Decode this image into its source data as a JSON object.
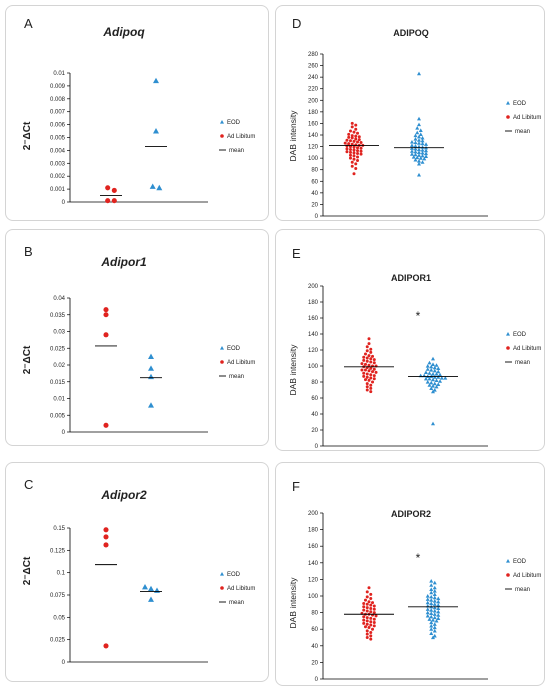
{
  "colors": {
    "eod": "#2f8fd0",
    "ad_libitum": "#e0231f",
    "mean": "#000000",
    "axis": "#000000"
  },
  "chart_data": [
    {
      "panel": "A",
      "type": "scatter",
      "title": "Adipoq",
      "ylabel": "2⁻ΔCt",
      "xlabel": "",
      "ylim": [
        0,
        0.01
      ],
      "ticks": [
        "0",
        "0.001",
        "0.002",
        "0.003",
        "0.004",
        "0.005",
        "0.006",
        "0.007",
        "0.008",
        "0.009",
        "0.01"
      ],
      "legend": [
        "EOD",
        "Ad Libitum",
        "mean"
      ],
      "series": [
        {
          "name": "Ad Libitum",
          "x": 1,
          "values": [
            0.0011,
            0.0009,
            0.0001,
            0.0001
          ],
          "mean": 0.0005
        },
        {
          "name": "EOD",
          "x": 2,
          "values": [
            0.0094,
            0.0055,
            0.0012,
            0.0011
          ],
          "mean": 0.0043
        }
      ]
    },
    {
      "panel": "B",
      "type": "scatter",
      "title": "Adipor1",
      "ylabel": "2⁻ΔCt",
      "xlabel": "",
      "ylim": [
        0,
        0.04
      ],
      "ticks": [
        "0",
        "0.005",
        "0.01",
        "0.015",
        "0.02",
        "0.025",
        "0.03",
        "0.035",
        "0.04"
      ],
      "legend": [
        "EOD",
        "Ad Libitum",
        "mean"
      ],
      "series": [
        {
          "name": "Ad Libitum",
          "x": 1,
          "values": [
            0.0365,
            0.035,
            0.029,
            0.002
          ],
          "mean": 0.0257
        },
        {
          "name": "EOD",
          "x": 2,
          "values": [
            0.0225,
            0.019,
            0.0165,
            0.008
          ],
          "mean": 0.0162
        }
      ]
    },
    {
      "panel": "C",
      "type": "scatter",
      "title": "Adipor2",
      "ylabel": "2⁻ΔCt",
      "xlabel": "",
      "ylim": [
        0,
        0.15
      ],
      "ticks": [
        "0",
        "0.025",
        "0.05",
        "0.075",
        "0.1",
        "0.125",
        "0.15"
      ],
      "legend": [
        "EOD",
        "Ad Libitum",
        "mean"
      ],
      "series": [
        {
          "name": "Ad Libitum",
          "x": 1,
          "values": [
            0.148,
            0.14,
            0.131,
            0.018
          ],
          "mean": 0.109
        },
        {
          "name": "EOD",
          "x": 2,
          "values": [
            0.084,
            0.082,
            0.08,
            0.07
          ],
          "mean": 0.079
        }
      ]
    },
    {
      "panel": "D",
      "type": "scatter",
      "title": "ADIPOQ",
      "ylabel": "DAB intensity",
      "xlabel": "",
      "ylim": [
        0,
        280
      ],
      "ticks": [
        "0",
        "20",
        "40",
        "60",
        "80",
        "100",
        "120",
        "140",
        "160",
        "180",
        "200",
        "220",
        "240",
        "260",
        "280"
      ],
      "legend": [
        "EOD",
        "Ad Libitum",
        "mean"
      ],
      "series": [
        {
          "name": "Ad Libitum",
          "x": 1,
          "mean": 122,
          "values": [
            160,
            157,
            154,
            150,
            147,
            145,
            143,
            141,
            139,
            138,
            137,
            136,
            135,
            133,
            132,
            131,
            130,
            129,
            128,
            127,
            126,
            125,
            124,
            123,
            122,
            122,
            121,
            120,
            119,
            118,
            117,
            116,
            115,
            114,
            113,
            112,
            111,
            110,
            109,
            108,
            107,
            105,
            104,
            102,
            100,
            98,
            96,
            93,
            90,
            86,
            82,
            73
          ]
        },
        {
          "name": "EOD",
          "x": 2,
          "mean": 118,
          "values": [
            246,
            168,
            158,
            152,
            148,
            144,
            141,
            139,
            137,
            135,
            133,
            131,
            130,
            128,
            127,
            126,
            125,
            124,
            122,
            121,
            120,
            119,
            118,
            117,
            116,
            115,
            114,
            113,
            112,
            111,
            110,
            109,
            108,
            107,
            106,
            105,
            104,
            103,
            102,
            101,
            100,
            99,
            97,
            95,
            93,
            90,
            71
          ]
        }
      ]
    },
    {
      "panel": "E",
      "type": "scatter",
      "title": "ADIPOR1",
      "ylabel": "DAB intensity",
      "xlabel": "",
      "ylim": [
        0,
        200
      ],
      "ticks": [
        "0",
        "20",
        "40",
        "60",
        "80",
        "100",
        "120",
        "140",
        "160",
        "180",
        "200"
      ],
      "legend": [
        "EOD",
        "Ad Libitum",
        "mean"
      ],
      "annotation": "*",
      "series": [
        {
          "name": "Ad Libitum",
          "x": 1,
          "mean": 99,
          "values": [
            134,
            128,
            124,
            121,
            119,
            117,
            115,
            113,
            112,
            111,
            110,
            109,
            108,
            107,
            106,
            105,
            104,
            103,
            102,
            101,
            100,
            100,
            99,
            98,
            97,
            96,
            95,
            95,
            94,
            93,
            92,
            91,
            90,
            89,
            88,
            87,
            86,
            85,
            84,
            83,
            82,
            80,
            78,
            76,
            74,
            72,
            70,
            68
          ]
        },
        {
          "name": "EOD",
          "x": 2,
          "mean": 87,
          "values": [
            109,
            104,
            102,
            101,
            100,
            99,
            98,
            97,
            96,
            95,
            94,
            93,
            92,
            91,
            90,
            90,
            89,
            88,
            88,
            87,
            87,
            86,
            86,
            85,
            85,
            84,
            84,
            83,
            82,
            81,
            80,
            79,
            78,
            77,
            76,
            75,
            74,
            72,
            70,
            68,
            28
          ]
        }
      ]
    },
    {
      "panel": "F",
      "type": "scatter",
      "title": "ADIPOR2",
      "ylabel": "DAB intensity",
      "xlabel": "",
      "ylim": [
        0,
        200
      ],
      "ticks": [
        "0",
        "20",
        "40",
        "60",
        "80",
        "100",
        "120",
        "140",
        "160",
        "180",
        "200"
      ],
      "legend": [
        "EOD",
        "Ad Libitum",
        "mean"
      ],
      "annotation": "*",
      "series": [
        {
          "name": "Ad Libitum",
          "x": 1,
          "mean": 78,
          "values": [
            110,
            105,
            102,
            99,
            97,
            95,
            93,
            92,
            91,
            90,
            89,
            88,
            87,
            86,
            85,
            84,
            83,
            82,
            81,
            80,
            79,
            78,
            78,
            77,
            76,
            75,
            74,
            73,
            72,
            71,
            70,
            69,
            68,
            67,
            66,
            65,
            64,
            63,
            62,
            60,
            58,
            56,
            54,
            52,
            50,
            48
          ]
        },
        {
          "name": "EOD",
          "x": 2,
          "mean": 87,
          "values": [
            118,
            116,
            113,
            110,
            108,
            106,
            104,
            102,
            100,
            99,
            98,
            97,
            96,
            95,
            94,
            93,
            92,
            91,
            90,
            89,
            88,
            87,
            86,
            85,
            84,
            83,
            82,
            81,
            80,
            79,
            78,
            77,
            76,
            75,
            74,
            73,
            72,
            71,
            70,
            68,
            66,
            64,
            62,
            60,
            58,
            55,
            52,
            50
          ]
        }
      ]
    }
  ]
}
